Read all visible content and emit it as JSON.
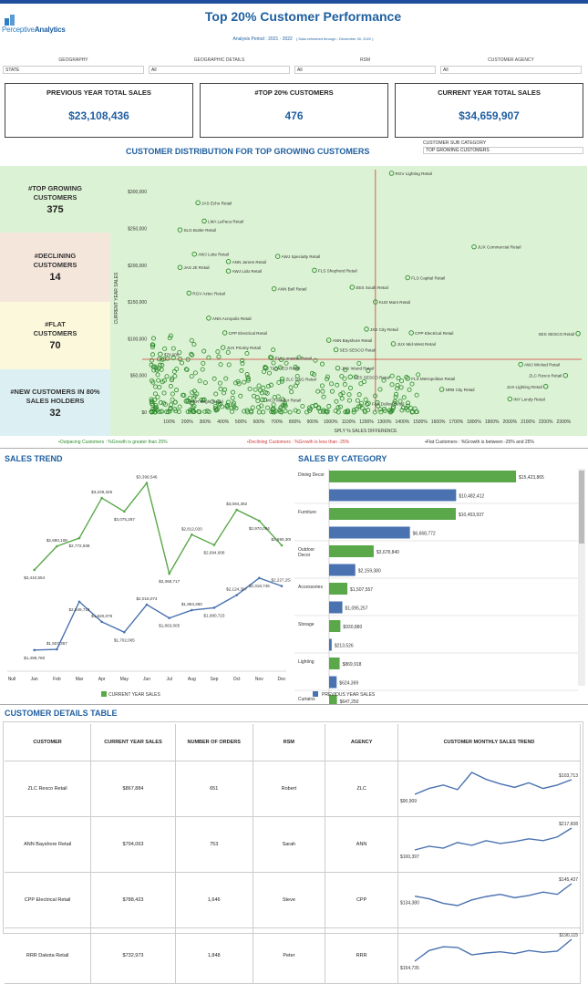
{
  "header": {
    "title": "Top 20% Customer Performance",
    "period": "Analysis Period : 2021 - 2022",
    "refresh": "( Data refreshed through : December 30, 2022 )",
    "logo_light": "Perceptive",
    "logo_bold": "Analytics"
  },
  "filters": [
    {
      "label": "GEOGRAPHY",
      "value": "STATE"
    },
    {
      "label": "GEOGRAPHIC DETAILS",
      "value": "All"
    },
    {
      "label": "RSM",
      "value": "All"
    },
    {
      "label": "CUSTOMER AGENCY",
      "value": "All"
    }
  ],
  "kpis": [
    {
      "label": "PREVIOUS YEAR TOTAL SALES",
      "value": "$23,108,436"
    },
    {
      "label": "#TOP 20% CUSTOMERS",
      "value": "476"
    },
    {
      "label": "CURRENT YEAR TOTAL SALES",
      "value": "$34,659,907"
    }
  ],
  "distribution": {
    "title": "CUSTOMER DISTRIBUTION FOR TOP GROWING CUSTOMERS",
    "subcat_label": "CUSTOMER SUB CATEGORY",
    "subcat_value": "TOP GROWING CUSTOMERS",
    "segments": [
      {
        "label": "#TOP GROWING CUSTOMERS",
        "value": "375",
        "color": "#dcf2d4"
      },
      {
        "label": "#DECLINING CUSTOMERS",
        "value": "14",
        "color": "#f5e6dc"
      },
      {
        "label": "#FLAT CUSTOMERS",
        "value": "70",
        "color": "#fcf8dc"
      },
      {
        "label": "#NEW CUSTOMERS IN 80% SALES HOLDERS",
        "value": "32",
        "color": "#dcf0f4"
      }
    ],
    "legend": {
      "outpacing": "▪Outpacing Customers : %Growth is greater than 25%",
      "declining": "▪Declining Customers : %Growth is less than -25%",
      "flat": "▪Flat Customers : %Growth is between -25% and 25%"
    }
  },
  "chart_data": [
    {
      "type": "scatter",
      "title": "CUSTOMER DISTRIBUTION FOR TOP GROWING CUSTOMERS",
      "xlabel": "SPLY % SALES DIFFERENCE",
      "ylabel": "CURRENT YEAR SALES",
      "xlim": [
        0,
        2400
      ],
      "ylim": [
        0,
        330000
      ],
      "x_ticks": [
        "100%",
        "200%",
        "300%",
        "400%",
        "500%",
        "600%",
        "700%",
        "800%",
        "900%",
        "1000%",
        "1100%",
        "1200%",
        "1300%",
        "1400%",
        "1500%",
        "1600%",
        "1700%",
        "1800%",
        "1900%",
        "2000%",
        "2100%",
        "2200%",
        "2300%"
      ],
      "y_ticks": [
        "$0",
        "$50,000",
        "$100,000",
        "$150,000",
        "$200,000",
        "$250,000",
        "$300,000"
      ],
      "ref_lines": {
        "x": 1250,
        "y": 72000
      },
      "labeled_points": [
        {
          "name": "RGV Lighting Retail",
          "x": 1340,
          "y": 325000
        },
        {
          "name": "JAS Echo Retail",
          "x": 260,
          "y": 285000
        },
        {
          "name": "LMA LaPaca Retail",
          "x": 295,
          "y": 260000
        },
        {
          "name": "SLG Butler Retail",
          "x": 160,
          "y": 248000
        },
        {
          "name": "JUX Commercial Retail",
          "x": 1800,
          "y": 225000
        },
        {
          "name": "AWJ Luke Retail",
          "x": 240,
          "y": 215000
        },
        {
          "name": "ANN James Retail",
          "x": 430,
          "y": 205000
        },
        {
          "name": "AWJ Specialty Retail",
          "x": 705,
          "y": 212000
        },
        {
          "name": "JAS JE Retail",
          "x": 160,
          "y": 197000
        },
        {
          "name": "AWJ Lido Retail",
          "x": 430,
          "y": 192000
        },
        {
          "name": "FLS Shepherd Retail",
          "x": 910,
          "y": 193000
        },
        {
          "name": "FLS Capital Retail",
          "x": 1430,
          "y": 183000
        },
        {
          "name": "SES South Retail",
          "x": 1120,
          "y": 170000
        },
        {
          "name": "ANN Bell Retail",
          "x": 685,
          "y": 168000
        },
        {
          "name": "RGV Aztec Retail",
          "x": 210,
          "y": 162000
        },
        {
          "name": "KUD Mars Retail",
          "x": 1250,
          "y": 150000
        },
        {
          "name": "ANN Acropolis Retail",
          "x": 320,
          "y": 128000
        },
        {
          "name": "JXE City Retail",
          "x": 1200,
          "y": 113000
        },
        {
          "name": "CPP Electrical Retail",
          "x": 1450,
          "y": 108000
        },
        {
          "name": "SES SESCO Retail",
          "x": 2380,
          "y": 107000
        },
        {
          "name": "CPP Electrical Retail",
          "x": 410,
          "y": 108000
        },
        {
          "name": "ANN Bayshore Retail",
          "x": 990,
          "y": 98000
        },
        {
          "name": "JUX Mid-West Retail",
          "x": 1350,
          "y": 93000
        },
        {
          "name": "JUX Priority Retail",
          "x": 400,
          "y": 88000
        },
        {
          "name": "SES SESCO Retail",
          "x": 1030,
          "y": 85000
        },
        {
          "name": "ELL Lonestar Retail",
          "x": 670,
          "y": 74000
        },
        {
          "name": "$79,000",
          "x": 50,
          "y": 79000
        },
        {
          "name": "AWJ Wicked Retail",
          "x": 2060,
          "y": 65000
        },
        {
          "name": "ZLC Rexco Retail",
          "x": 2310,
          "y": 50000
        },
        {
          "name": "TLG CEO Retail",
          "x": 640,
          "y": 60000
        },
        {
          "name": "JUX Inland Retail",
          "x": 1040,
          "y": 60000
        },
        {
          "name": "SES SESCO Retail",
          "x": 1110,
          "y": 48000
        },
        {
          "name": "FLS Metropolitan Retail",
          "x": 1430,
          "y": 46000
        },
        {
          "name": "ZLC G&G Retail",
          "x": 730,
          "y": 45000
        },
        {
          "name": "JUX Lighting Retail",
          "x": 2200,
          "y": 35000
        },
        {
          "name": "NRB City Retail",
          "x": 1620,
          "y": 31000
        },
        {
          "name": "INY Lendy Retail",
          "x": 2000,
          "y": 18000
        },
        {
          "name": "RRR Bright Retail",
          "x": 195,
          "y": 15000
        },
        {
          "name": "MCA Medler Retail",
          "x": 620,
          "y": 17000
        },
        {
          "name": "FLS Dulles Retail",
          "x": 1210,
          "y": 12000
        }
      ]
    },
    {
      "type": "line",
      "title": "SALES TREND",
      "categories": [
        "Null",
        "Jan",
        "Feb",
        "Mar",
        "Apr",
        "May",
        "Jun",
        "Jul",
        "Aug",
        "Sep",
        "Oct",
        "Nov",
        "Dec"
      ],
      "series": [
        {
          "name": "CURRENT YEAR SALES",
          "color": "#5aa84a",
          "values": [
            null,
            2410554,
            2680108,
            2772938,
            3229325,
            3075287,
            3399546,
            2368717,
            2812020,
            2694608,
            3094392,
            2970094,
            2690300
          ]
        },
        {
          "name": "PREVIOUS YEAR SALES",
          "color": "#4a72b0",
          "values": [
            null,
            1498760,
            1507357,
            2049718,
            1820079,
            1702065,
            2016074,
            1863005,
            1953360,
            1980723,
            2124397,
            2318745,
            2227253
          ]
        }
      ],
      "ylim": [
        1300000,
        3500000
      ]
    },
    {
      "type": "bar",
      "orientation": "horizontal",
      "title": "SALES BY CATEGORY",
      "categories": [
        "Dining Decor",
        "Furniture",
        "Outdoor Decor",
        "Accessories",
        "Storage",
        "Lighting",
        "Curtains"
      ],
      "series": [
        {
          "name": "CURRENT YEAR SALES",
          "color": "#5aa84a",
          "values": [
            15423865,
            10453937,
            3678840,
            1507557,
            930880,
            869918,
            647250
          ]
        },
        {
          "name": "PREVIOUS YEAR SALES",
          "color": "#4a72b0",
          "values": [
            10482412,
            6668772,
            2159380,
            1095257,
            213526,
            624369,
            null
          ]
        }
      ],
      "xlim": [
        0,
        17000000
      ]
    }
  ],
  "labels": {
    "trend_values_cy": [
      "$2,410,554",
      "$2,680,108",
      "$2,772,938",
      "$3,229,325",
      "$3,075,287",
      "$3,399,546",
      "$2,368,717",
      "$2,812,020",
      "$2,694,608",
      "$3,094,392",
      "$2,970,094",
      "$2,690,300"
    ],
    "trend_values_py": [
      "$1,498,760",
      "$1,507,357",
      "$2,049,718",
      "$1,820,079",
      "$1,702,065",
      "$2,016,074",
      "$1,863,005",
      "$1,953,360",
      "$1,980,723",
      "$2,124,397",
      "$2,318,745",
      "$2,227,253"
    ],
    "bar_values_cy": [
      "$15,423,865",
      "$10,453,937",
      "$3,678,840",
      "$1,507,557",
      "$930,880",
      "$869,918",
      "$647,250"
    ],
    "bar_values_py": [
      "$10,482,412",
      "$6,668,772",
      "$2,159,380",
      "$1,095,257",
      "$213,526",
      "$624,369"
    ]
  },
  "trend": {
    "title": "SALES TREND",
    "legend_cy": "CURRENT YEAR SALES",
    "legend_py": "PREVIOUS YEAR SALES"
  },
  "category": {
    "title": "SALES BY CATEGORY",
    "legend_cy": "CURRENT YEAR SALES",
    "legend_py": "PREVIOUS YEAR SALES"
  },
  "table": {
    "title": "CUSTOMER DETAILS TABLE",
    "columns": [
      "CUSTOMER",
      "CURRENT YEAR SALES",
      "NUMBER OF ORDERS",
      "RSM",
      "AGENCY",
      "CUSTOMER MONTHLY SALES TREND"
    ],
    "rows": [
      {
        "customer": "ZLC Rexco Retail",
        "sales": "$867,884",
        "orders": "651",
        "rsm": "Robert",
        "agency": "ZLC",
        "start": "$90,909",
        "end": "$103,713",
        "spark": [
          90909,
          96000,
          99000,
          95000,
          110000,
          104000,
          100000,
          97000,
          101000,
          96000,
          99000,
          103713
        ]
      },
      {
        "customer": "ANN Bayshore Retail",
        "sales": "$794,063",
        "orders": "753",
        "rsm": "Sarah",
        "agency": "ANN",
        "start": "$100,397",
        "end": "$217,608",
        "spark": [
          100397,
          120000,
          110000,
          140000,
          125000,
          150000,
          135000,
          145000,
          160000,
          150000,
          170000,
          217608
        ]
      },
      {
        "customer": "CPP Electrical Retail",
        "sales": "$788,423",
        "orders": "1,646",
        "rsm": "Steve",
        "agency": "CPP",
        "start": "$134,380",
        "end": "$145,437",
        "spark": [
          134380,
          132000,
          128000,
          126000,
          131000,
          134000,
          136000,
          133000,
          135000,
          138000,
          136000,
          145437
        ]
      },
      {
        "customer": "RRR Dakota Retail",
        "sales": "$732,973",
        "orders": "1,848",
        "rsm": "Peter",
        "agency": "RRR",
        "start": "$154,735",
        "end": "$190,115",
        "spark": [
          154735,
          172000,
          178000,
          177000,
          165000,
          168000,
          170000,
          167000,
          172000,
          169000,
          171000,
          190115
        ]
      }
    ]
  }
}
